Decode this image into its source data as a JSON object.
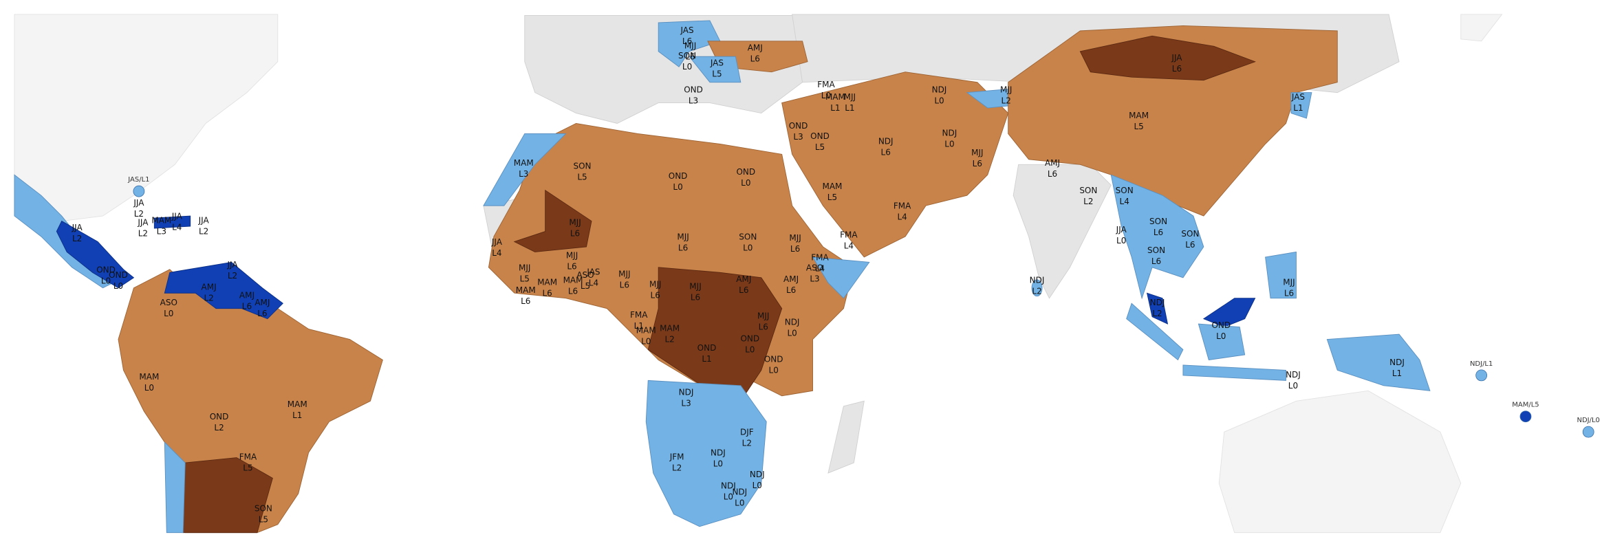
{
  "regions": [
    {
      "season": "JAS",
      "level": "L6"
    },
    {
      "season": "MJJ",
      "level": "L6"
    },
    {
      "season": "SON",
      "level": "L0"
    },
    {
      "season": "JAS",
      "level": "L5"
    },
    {
      "season": "AMJ",
      "level": "L6"
    },
    {
      "season": "OND",
      "level": "L3"
    },
    {
      "season": "FMA",
      "level": "L0"
    },
    {
      "season": "MAM",
      "level": "L1"
    },
    {
      "season": "MJJ",
      "level": "L1"
    },
    {
      "season": "NDJ",
      "level": "L0"
    },
    {
      "season": "MJJ",
      "level": "L2"
    },
    {
      "season": "JJA",
      "level": "L6"
    },
    {
      "season": "JAS",
      "level": "L1"
    },
    {
      "season": "MAM",
      "level": "L5"
    },
    {
      "season": "MAM",
      "level": "L3"
    },
    {
      "season": "SON",
      "level": "L5"
    },
    {
      "season": "OND",
      "level": "L0"
    },
    {
      "season": "OND",
      "level": "L0"
    },
    {
      "season": "OND",
      "level": "L3"
    },
    {
      "season": "OND",
      "level": "L5"
    },
    {
      "season": "NDJ",
      "level": "L6"
    },
    {
      "season": "NDJ",
      "level": "L0"
    },
    {
      "season": "MJJ",
      "level": "L6"
    },
    {
      "season": "AMJ",
      "level": "L6"
    },
    {
      "season": "SON",
      "level": "L2"
    },
    {
      "season": "SON",
      "level": "L4"
    },
    {
      "season": "MAM",
      "level": "L5"
    },
    {
      "season": "FMA",
      "level": "L4"
    },
    {
      "season": "FMA",
      "level": "L4"
    },
    {
      "season": "MJJ",
      "level": "L6"
    },
    {
      "season": "MJJ",
      "level": "L6"
    },
    {
      "season": "SON",
      "level": "L0"
    },
    {
      "season": "MJJ",
      "level": "L6"
    },
    {
      "season": "FMA",
      "level": "L4"
    },
    {
      "season": "ASO",
      "level": "L3"
    },
    {
      "season": "SON",
      "level": "L6"
    },
    {
      "season": "SON",
      "level": "L6"
    },
    {
      "season": "SON",
      "level": "L6"
    },
    {
      "season": "JJA",
      "level": "L0"
    },
    {
      "season": "MJJ",
      "level": "L6"
    },
    {
      "season": "NDJ",
      "level": "L2"
    },
    {
      "season": "NDJ",
      "level": "L2"
    },
    {
      "season": "OND",
      "level": "L0"
    },
    {
      "season": "NDJ",
      "level": "L0"
    },
    {
      "season": "NDJ",
      "level": "L1"
    },
    {
      "season": "JJA",
      "level": "L4"
    },
    {
      "season": "MJJ",
      "level": "L5"
    },
    {
      "season": "MAM",
      "level": "L6"
    },
    {
      "season": "MAM",
      "level": "L6"
    },
    {
      "season": "MJJ",
      "level": "L6"
    },
    {
      "season": "MAM",
      "level": "L6"
    },
    {
      "season": "ASO",
      "level": "L5"
    },
    {
      "season": "JAS",
      "level": "L4"
    },
    {
      "season": "MJJ",
      "level": "L6"
    },
    {
      "season": "MJJ",
      "level": "L6"
    },
    {
      "season": "MJJ",
      "level": "L6"
    },
    {
      "season": "AMJ",
      "level": "L6"
    },
    {
      "season": "AMJ",
      "level": "L6"
    },
    {
      "season": "MJJ",
      "level": "L6"
    },
    {
      "season": "NDJ",
      "level": "L0"
    },
    {
      "season": "FMA",
      "level": "L1"
    },
    {
      "season": "MAM",
      "level": "L0"
    },
    {
      "season": "MAM",
      "level": "L2"
    },
    {
      "season": "OND",
      "level": "L0"
    },
    {
      "season": "OND",
      "level": "L1"
    },
    {
      "season": "OND",
      "level": "L0"
    },
    {
      "season": "NDJ",
      "level": "L3"
    },
    {
      "season": "DJF",
      "level": "L2"
    },
    {
      "season": "NDJ",
      "level": "L0"
    },
    {
      "season": "JFM",
      "level": "L2"
    },
    {
      "season": "NDJ",
      "level": "L0"
    },
    {
      "season": "NDJ",
      "level": "L0"
    },
    {
      "season": "NDJ",
      "level": "L0"
    },
    {
      "season": "JJA",
      "level": "L2"
    },
    {
      "season": "JJA",
      "level": "L2"
    },
    {
      "season": "MAM",
      "level": "L3"
    },
    {
      "season": "JJA",
      "level": "L4"
    },
    {
      "season": "JJA",
      "level": "L2"
    },
    {
      "season": "JJA",
      "level": "L2"
    },
    {
      "season": "JJA",
      "level": "L2"
    },
    {
      "season": "OND",
      "level": "L0"
    },
    {
      "season": "OND",
      "level": "L0"
    },
    {
      "season": "AMJ",
      "level": "L2"
    },
    {
      "season": "AMJ",
      "level": "L6"
    },
    {
      "season": "AMJ",
      "level": "L6"
    },
    {
      "season": "ASO",
      "level": "L0"
    },
    {
      "season": "MAM",
      "level": "L0"
    },
    {
      "season": "MAM",
      "level": "L1"
    },
    {
      "season": "OND",
      "level": "L2"
    },
    {
      "season": "FMA",
      "level": "L5"
    },
    {
      "season": "SON",
      "level": "L5"
    }
  ],
  "points": [
    {
      "label": "JAS/L1",
      "color": "#72b2e5"
    },
    {
      "label": "NDJ/L1",
      "color": "#72b2e5"
    },
    {
      "label": "MAM/L5",
      "color": "#1040b4"
    },
    {
      "label": "NDJ/L0",
      "color": "#72b2e5"
    }
  ]
}
